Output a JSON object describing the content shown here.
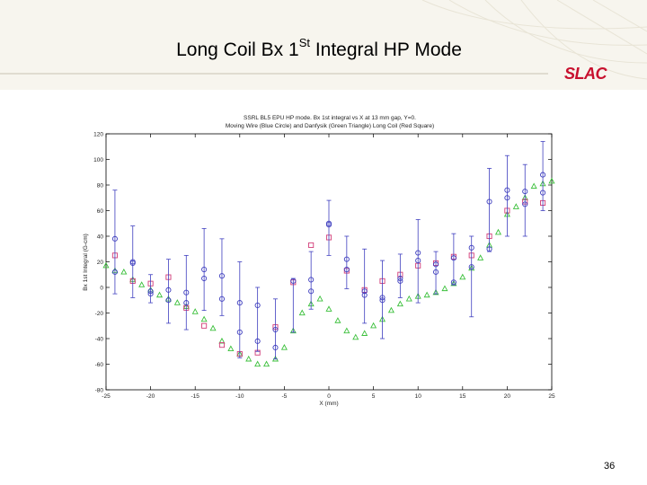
{
  "slide": {
    "title_main": "Long Coil Bx 1",
    "title_sup": "St",
    "title_rest": " Integral HP Mode",
    "logo_text": "SLAC",
    "page_number": "36"
  },
  "colors": {
    "moving_wire": "#3f3fbf",
    "danfysik": "#3cc03c",
    "long_coil": "#d23c78",
    "logo": "#c8102e"
  },
  "chart_data": {
    "type": "scatter",
    "title_line1": "SSRL BL5 EPU HP mode. Bx 1st integral vs X at 13 mm gap, Y=0.",
    "title_line2": "Moving Wire (Blue Circle) and Danfysik (Green Triangle) Long Coil (Red Square)",
    "xlabel": "X (mm)",
    "ylabel": "Bx 1st Integral (G-cm)",
    "xlim": [
      -25,
      25
    ],
    "ylim": [
      -80,
      120
    ],
    "xticks": [
      -25,
      -20,
      -15,
      -10,
      -5,
      0,
      5,
      10,
      15,
      20,
      25
    ],
    "yticks": [
      -80,
      -60,
      -40,
      -20,
      0,
      20,
      40,
      60,
      80,
      100,
      120
    ],
    "grid": false,
    "series": [
      {
        "marker": "circle",
        "color": "#3f3fbf",
        "points": [
          {
            "x": -24,
            "y": 38,
            "lo": -5,
            "hi": 76
          },
          {
            "x": -24,
            "y": 12
          },
          {
            "x": -22,
            "y": 20,
            "lo": -8,
            "hi": 48
          },
          {
            "x": -22,
            "y": 19
          },
          {
            "x": -20,
            "y": -3,
            "lo": -12,
            "hi": 10
          },
          {
            "x": -20,
            "y": -5
          },
          {
            "x": -18,
            "y": -2,
            "lo": -28,
            "hi": 22
          },
          {
            "x": -18,
            "y": -10
          },
          {
            "x": -16,
            "y": -4,
            "lo": -33,
            "hi": 25
          },
          {
            "x": -16,
            "y": -12
          },
          {
            "x": -14,
            "y": 14,
            "lo": -18,
            "hi": 46
          },
          {
            "x": -14,
            "y": 7
          },
          {
            "x": -12,
            "y": 9,
            "lo": -22,
            "hi": 38
          },
          {
            "x": -12,
            "y": -9
          },
          {
            "x": -10,
            "y": -12,
            "lo": -55,
            "hi": 20
          },
          {
            "x": -10,
            "y": -35
          },
          {
            "x": -8,
            "y": -14,
            "lo": -50,
            "hi": 0
          },
          {
            "x": -8,
            "y": -42
          },
          {
            "x": -6,
            "y": -33,
            "lo": -56,
            "hi": -9
          },
          {
            "x": -6,
            "y": -47
          },
          {
            "x": -4,
            "y": 5,
            "lo": -35,
            "hi": 7
          },
          {
            "x": -2,
            "y": 6,
            "lo": -17,
            "hi": 28
          },
          {
            "x": -2,
            "y": -3
          },
          {
            "x": 0,
            "y": 50,
            "lo": 25,
            "hi": 68
          },
          {
            "x": 0,
            "y": 49
          },
          {
            "x": 2,
            "y": 22,
            "lo": -1,
            "hi": 40
          },
          {
            "x": 2,
            "y": 14
          },
          {
            "x": 4,
            "y": -6,
            "lo": -28,
            "hi": 30
          },
          {
            "x": 4,
            "y": -3
          },
          {
            "x": 6,
            "y": -10,
            "lo": -40,
            "hi": 21
          },
          {
            "x": 6,
            "y": -8
          },
          {
            "x": 8,
            "y": 7,
            "lo": -8,
            "hi": 26
          },
          {
            "x": 8,
            "y": 5
          },
          {
            "x": 10,
            "y": 27,
            "lo": -12,
            "hi": 53
          },
          {
            "x": 10,
            "y": 21
          },
          {
            "x": 12,
            "y": 18,
            "lo": -5,
            "hi": 28
          },
          {
            "x": 12,
            "y": 12
          },
          {
            "x": 14,
            "y": 23,
            "lo": 2,
            "hi": 42
          },
          {
            "x": 14,
            "y": 4
          },
          {
            "x": 16,
            "y": 31,
            "lo": -23,
            "hi": 40
          },
          {
            "x": 16,
            "y": 16
          },
          {
            "x": 18,
            "y": 67,
            "lo": 28,
            "hi": 93
          },
          {
            "x": 18,
            "y": 30
          },
          {
            "x": 20,
            "y": 76,
            "lo": 40,
            "hi": 103
          },
          {
            "x": 20,
            "y": 70
          },
          {
            "x": 22,
            "y": 75,
            "lo": 40,
            "hi": 96
          },
          {
            "x": 22,
            "y": 65
          },
          {
            "x": 24,
            "y": 88,
            "lo": 60,
            "hi": 114
          },
          {
            "x": 24,
            "y": 74
          }
        ]
      },
      {
        "marker": "triangle",
        "color": "#3cc03c",
        "points": [
          {
            "x": -25,
            "y": 17
          },
          {
            "x": -24,
            "y": 13
          },
          {
            "x": -23,
            "y": 12
          },
          {
            "x": -22,
            "y": 6
          },
          {
            "x": -21,
            "y": 2
          },
          {
            "x": -20,
            "y": -2
          },
          {
            "x": -19,
            "y": -6
          },
          {
            "x": -18,
            "y": -9
          },
          {
            "x": -17,
            "y": -12
          },
          {
            "x": -16,
            "y": -15
          },
          {
            "x": -15,
            "y": -19
          },
          {
            "x": -14,
            "y": -25
          },
          {
            "x": -13,
            "y": -32
          },
          {
            "x": -12,
            "y": -42
          },
          {
            "x": -11,
            "y": -48
          },
          {
            "x": -10,
            "y": -52
          },
          {
            "x": -9,
            "y": -56
          },
          {
            "x": -8,
            "y": -60
          },
          {
            "x": -7,
            "y": -60
          },
          {
            "x": -6,
            "y": -56
          },
          {
            "x": -5,
            "y": -47
          },
          {
            "x": -4,
            "y": -34
          },
          {
            "x": -3,
            "y": -20
          },
          {
            "x": -2,
            "y": -13
          },
          {
            "x": -1,
            "y": -9
          },
          {
            "x": 0,
            "y": -17
          },
          {
            "x": 1,
            "y": -26
          },
          {
            "x": 2,
            "y": -34
          },
          {
            "x": 3,
            "y": -39
          },
          {
            "x": 4,
            "y": -36
          },
          {
            "x": 5,
            "y": -30
          },
          {
            "x": 6,
            "y": -25
          },
          {
            "x": 7,
            "y": -18
          },
          {
            "x": 8,
            "y": -13
          },
          {
            "x": 9,
            "y": -9
          },
          {
            "x": 10,
            "y": -7
          },
          {
            "x": 11,
            "y": -6
          },
          {
            "x": 12,
            "y": -4
          },
          {
            "x": 13,
            "y": -1
          },
          {
            "x": 14,
            "y": 3
          },
          {
            "x": 15,
            "y": 8
          },
          {
            "x": 16,
            "y": 15
          },
          {
            "x": 17,
            "y": 23
          },
          {
            "x": 18,
            "y": 33
          },
          {
            "x": 19,
            "y": 43
          },
          {
            "x": 20,
            "y": 57
          },
          {
            "x": 21,
            "y": 63
          },
          {
            "x": 22,
            "y": 70
          },
          {
            "x": 23,
            "y": 79
          },
          {
            "x": 24,
            "y": 81
          },
          {
            "x": 25,
            "y": 83
          }
        ]
      },
      {
        "marker": "square",
        "color": "#d23c78",
        "points": [
          {
            "x": -24,
            "y": 25
          },
          {
            "x": -22,
            "y": 5
          },
          {
            "x": -20,
            "y": 3
          },
          {
            "x": -18,
            "y": 8
          },
          {
            "x": -16,
            "y": -16
          },
          {
            "x": -14,
            "y": -30
          },
          {
            "x": -12,
            "y": -45
          },
          {
            "x": -10,
            "y": -52
          },
          {
            "x": -8,
            "y": -51
          },
          {
            "x": -6,
            "y": -31
          },
          {
            "x": -4,
            "y": 4
          },
          {
            "x": -2,
            "y": 33
          },
          {
            "x": 0,
            "y": 39
          },
          {
            "x": 2,
            "y": 13
          },
          {
            "x": 4,
            "y": -2
          },
          {
            "x": 6,
            "y": 5
          },
          {
            "x": 8,
            "y": 10
          },
          {
            "x": 10,
            "y": 17
          },
          {
            "x": 12,
            "y": 19
          },
          {
            "x": 14,
            "y": 24
          },
          {
            "x": 16,
            "y": 25
          },
          {
            "x": 18,
            "y": 40
          },
          {
            "x": 20,
            "y": 60
          },
          {
            "x": 22,
            "y": 67
          },
          {
            "x": 24,
            "y": 66
          }
        ]
      }
    ]
  }
}
